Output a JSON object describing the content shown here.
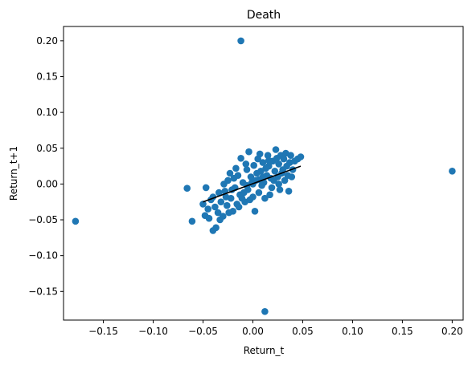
{
  "chart_data": {
    "type": "scatter",
    "title": "Death",
    "xlabel": "Return_t",
    "ylabel": "Return_t+1",
    "xlim": [
      -0.19,
      0.211
    ],
    "ylim": [
      -0.19,
      0.22
    ],
    "grid": false,
    "marker_color": "#1f77b4",
    "line_color": "#000000",
    "x_ticks": [
      -0.15,
      -0.1,
      -0.05,
      0.0,
      0.05,
      0.1,
      0.15,
      0.2
    ],
    "x_tick_labels": [
      "−0.15",
      "−0.10",
      "−0.05",
      "0.00",
      "0.05",
      "0.10",
      "0.15",
      "0.20"
    ],
    "y_ticks": [
      -0.15,
      -0.1,
      -0.05,
      0.0,
      0.05,
      0.1,
      0.15,
      0.2
    ],
    "y_tick_labels": [
      "−0.15",
      "−0.10",
      "−0.05",
      "0.00",
      "0.05",
      "0.10",
      "0.15",
      "0.20"
    ],
    "series": [
      {
        "type": "scatter",
        "points": [
          [
            -0.012,
            0.2
          ],
          [
            0.2,
            0.018
          ],
          [
            -0.178,
            -0.052
          ],
          [
            0.012,
            -0.178
          ],
          [
            -0.066,
            -0.006
          ],
          [
            -0.061,
            -0.052
          ],
          [
            -0.04,
            -0.065
          ],
          [
            -0.037,
            -0.061
          ],
          [
            -0.05,
            -0.028
          ],
          [
            -0.048,
            -0.044
          ],
          [
            -0.045,
            -0.035
          ],
          [
            -0.047,
            -0.005
          ],
          [
            -0.04,
            -0.018
          ],
          [
            -0.035,
            -0.04
          ],
          [
            -0.032,
            -0.025
          ],
          [
            -0.03,
            -0.045
          ],
          [
            -0.028,
            -0.01
          ],
          [
            -0.026,
            -0.03
          ],
          [
            -0.025,
            0.005
          ],
          [
            -0.022,
            -0.02
          ],
          [
            -0.02,
            -0.038
          ],
          [
            -0.018,
            -0.005
          ],
          [
            -0.016,
            -0.028
          ],
          [
            -0.015,
            0.012
          ],
          [
            -0.013,
            -0.015
          ],
          [
            -0.012,
            0.036
          ],
          [
            -0.01,
            0.002
          ],
          [
            -0.008,
            -0.025
          ],
          [
            -0.006,
            0.02
          ],
          [
            -0.005,
            -0.008
          ],
          [
            -0.004,
            0.045
          ],
          [
            -0.002,
            0.01
          ],
          [
            0.0,
            -0.018
          ],
          [
            0.001,
            0.026
          ],
          [
            0.002,
            -0.038
          ],
          [
            0.003,
            0.005
          ],
          [
            0.005,
            0.035
          ],
          [
            0.006,
            -0.012
          ],
          [
            0.008,
            0.018
          ],
          [
            0.01,
            0.03
          ],
          [
            0.011,
            0.002
          ],
          [
            0.012,
            -0.02
          ],
          [
            0.014,
            0.012
          ],
          [
            0.015,
            0.04
          ],
          [
            0.016,
            0.025
          ],
          [
            0.018,
            0.008
          ],
          [
            0.019,
            -0.005
          ],
          [
            0.02,
            0.032
          ],
          [
            0.022,
            0.018
          ],
          [
            0.023,
            0.048
          ],
          [
            0.025,
            0.01
          ],
          [
            0.026,
            0.028
          ],
          [
            0.027,
            -0.008
          ],
          [
            0.028,
            0.04
          ],
          [
            0.03,
            0.02
          ],
          [
            0.031,
            0.035
          ],
          [
            0.032,
            0.005
          ],
          [
            0.033,
            0.043
          ],
          [
            0.034,
            0.025
          ],
          [
            0.035,
            0.012
          ],
          [
            0.036,
            -0.01
          ],
          [
            0.037,
            0.03
          ],
          [
            0.038,
            0.04
          ],
          [
            0.04,
            0.02
          ],
          [
            0.042,
            0.032
          ],
          [
            0.045,
            0.035
          ],
          [
            0.048,
            0.038
          ],
          [
            -0.044,
            -0.048
          ],
          [
            -0.038,
            -0.032
          ],
          [
            -0.034,
            -0.012
          ],
          [
            -0.029,
            0.0
          ],
          [
            -0.024,
            -0.04
          ],
          [
            -0.021,
            -0.008
          ],
          [
            -0.017,
            0.022
          ],
          [
            -0.014,
            -0.032
          ],
          [
            -0.009,
            -0.012
          ],
          [
            -0.007,
            0.028
          ],
          [
            -0.003,
            -0.022
          ],
          [
            0.004,
            0.015
          ],
          [
            0.007,
            0.042
          ],
          [
            0.009,
            -0.002
          ],
          [
            0.013,
            0.022
          ],
          [
            0.017,
            -0.015
          ],
          [
            0.021,
            0.005
          ],
          [
            0.024,
            0.036
          ],
          [
            0.029,
            0.015
          ],
          [
            -0.027,
            -0.018
          ],
          [
            -0.019,
            0.008
          ],
          [
            -0.011,
            -0.02
          ],
          [
            -0.001,
            0.002
          ],
          [
            0.016,
            0.033
          ],
          [
            0.026,
            0.0
          ],
          [
            0.039,
            0.01
          ],
          [
            -0.033,
            -0.05
          ],
          [
            -0.023,
            0.015
          ],
          [
            -0.042,
            -0.022
          ],
          [
            0.01,
            0.01
          ],
          [
            0.0,
            0.0
          ],
          [
            -0.006,
            -0.002
          ],
          [
            0.006,
            0.006
          ]
        ]
      },
      {
        "type": "line",
        "x": [
          -0.05,
          0.048
        ],
        "y": [
          -0.025,
          0.025
        ]
      }
    ]
  }
}
